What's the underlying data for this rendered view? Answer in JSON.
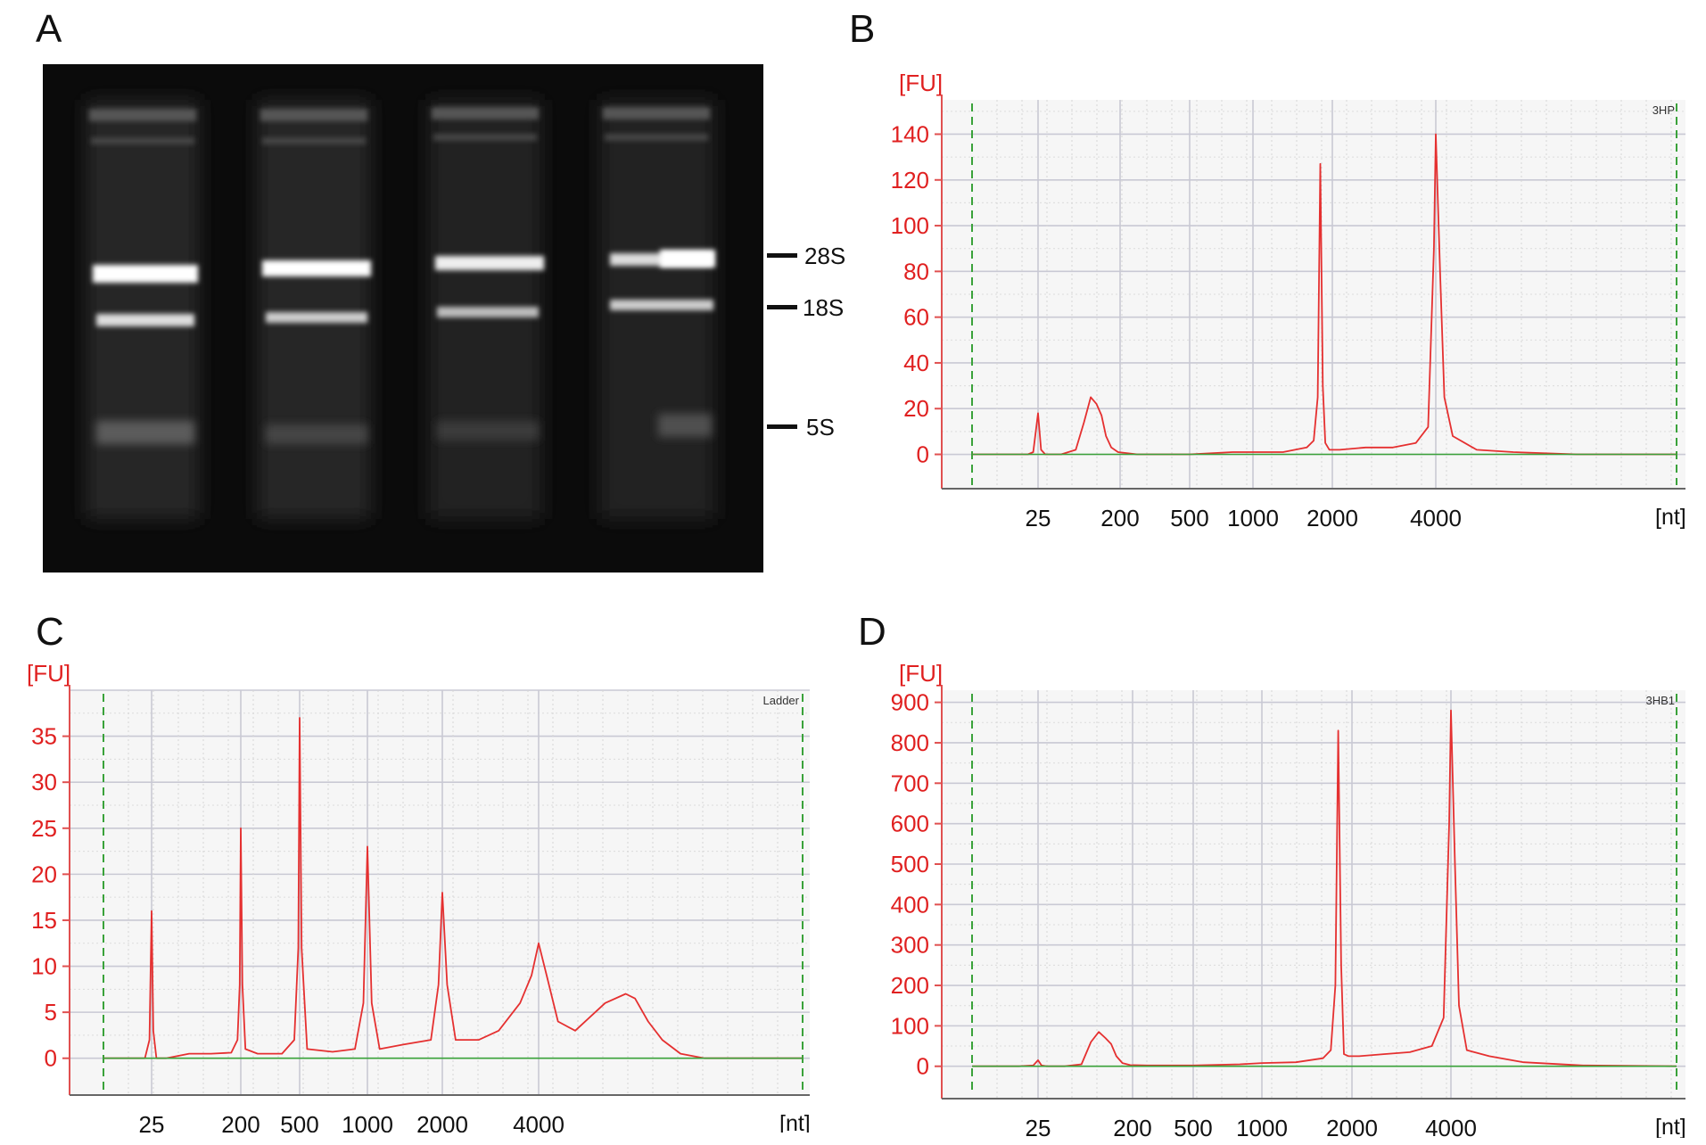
{
  "panels": {
    "a": "A",
    "b": "B",
    "c": "C",
    "d": "D"
  },
  "gel": {
    "band_labels": [
      "28S",
      "18S",
      "5S"
    ],
    "lanes": 4
  },
  "chart_data": [
    {
      "panel": "B",
      "type": "line",
      "sample_label": "3HP",
      "y_unit": "[FU]",
      "x_unit": "[nt]",
      "ylim": [
        -15,
        155
      ],
      "yticks": [
        0,
        20,
        40,
        60,
        80,
        100,
        120,
        140
      ],
      "xtick_labels": [
        "25",
        "200",
        "500",
        "1000",
        "2000",
        "4000"
      ],
      "xtick_positions": [
        25,
        200,
        500,
        1000,
        2000,
        4000
      ],
      "grid": true,
      "series": [
        {
          "color": "#e53030",
          "x": [
            5,
            8,
            12,
            18,
            21,
            23,
            25,
            27,
            30,
            45,
            65,
            80,
            95,
            110,
            125,
            140,
            160,
            190,
            250,
            500,
            800,
            1000,
            1300,
            1600,
            1700,
            1760,
            1800,
            1840,
            1880,
            1950,
            2100,
            2500,
            3000,
            3500,
            3800,
            3950,
            4000,
            4050,
            4100,
            4200,
            4500,
            5000,
            6000,
            8000
          ],
          "y": [
            0,
            0,
            0,
            0,
            0,
            1,
            18,
            2,
            0,
            0,
            2,
            14,
            25,
            22,
            17,
            8,
            3,
            1,
            0,
            0,
            1,
            1,
            1,
            3,
            6,
            25,
            127,
            30,
            5,
            2,
            2,
            3,
            3,
            5,
            12,
            90,
            140,
            80,
            25,
            8,
            2,
            1,
            0,
            0
          ]
        },
        {
          "color": "#3aa23a",
          "x": [
            5,
            8000
          ],
          "y": [
            0,
            0
          ]
        }
      ]
    },
    {
      "panel": "C",
      "type": "line",
      "sample_label": "Ladder",
      "y_unit": "[FU]",
      "x_unit": "[nt]",
      "ylim": [
        -4,
        40
      ],
      "yticks": [
        0,
        5,
        10,
        15,
        20,
        25,
        30,
        35
      ],
      "xtick_labels": [
        "25",
        "200",
        "500",
        "1000",
        "2000",
        "4000"
      ],
      "xtick_positions": [
        25,
        200,
        500,
        1000,
        2000,
        4000
      ],
      "grid": true,
      "series": [
        {
          "color": "#e53030",
          "x": [
            5,
            10,
            18,
            22,
            24,
            25,
            26,
            28,
            35,
            60,
            100,
            160,
            185,
            195,
            200,
            205,
            215,
            260,
            380,
            460,
            490,
            500,
            510,
            540,
            700,
            880,
            960,
            1000,
            1040,
            1120,
            1400,
            1800,
            1930,
            2000,
            2070,
            2200,
            2600,
            3000,
            3500,
            3800,
            4000,
            4200,
            4500,
            5000,
            6000,
            6800,
            7200,
            7800,
            8500,
            9500,
            11000,
            20000
          ],
          "y": [
            0,
            0,
            0,
            0,
            2,
            16,
            3,
            0,
            0,
            0.5,
            0.5,
            0.6,
            2,
            8,
            25,
            8,
            1,
            0.5,
            0.5,
            2,
            12,
            37,
            12,
            1,
            0.7,
            1,
            6,
            23,
            6,
            1,
            1.5,
            2,
            8,
            18,
            8,
            2,
            2,
            3,
            6,
            9,
            12.5,
            9,
            4,
            3,
            6,
            7,
            6.5,
            4,
            2,
            0.5,
            0,
            0
          ]
        },
        {
          "color": "#3aa23a",
          "x": [
            5,
            20000
          ],
          "y": [
            0,
            0
          ]
        }
      ]
    },
    {
      "panel": "D",
      "type": "line",
      "sample_label": "3HB1",
      "y_unit": "[FU]",
      "x_unit": "[nt]",
      "ylim": [
        -80,
        930
      ],
      "yticks": [
        0,
        100,
        200,
        300,
        400,
        500,
        600,
        700,
        800,
        900
      ],
      "xtick_labels": [
        "25",
        "200",
        "500",
        "1000",
        "2000",
        "4000"
      ],
      "xtick_positions": [
        25,
        200,
        500,
        1000,
        2000,
        4000
      ],
      "grid": true,
      "series": [
        {
          "color": "#e53030",
          "x": [
            5,
            10,
            18,
            23,
            25,
            27,
            30,
            45,
            65,
            80,
            95,
            110,
            125,
            140,
            160,
            190,
            250,
            500,
            800,
            1000,
            1300,
            1600,
            1700,
            1760,
            1800,
            1840,
            1880,
            1950,
            2100,
            2500,
            3000,
            3500,
            3800,
            3950,
            4000,
            4050,
            4100,
            4200,
            4500,
            5000,
            6000,
            8000
          ],
          "y": [
            0,
            0,
            0,
            2,
            15,
            2,
            0,
            0,
            5,
            60,
            85,
            70,
            55,
            25,
            8,
            3,
            2,
            2,
            5,
            8,
            10,
            20,
            40,
            200,
            830,
            250,
            30,
            25,
            25,
            30,
            35,
            50,
            120,
            600,
            880,
            500,
            150,
            40,
            25,
            10,
            2,
            0
          ]
        },
        {
          "color": "#3aa23a",
          "x": [
            5,
            8000
          ],
          "y": [
            0,
            0
          ]
        }
      ]
    }
  ]
}
